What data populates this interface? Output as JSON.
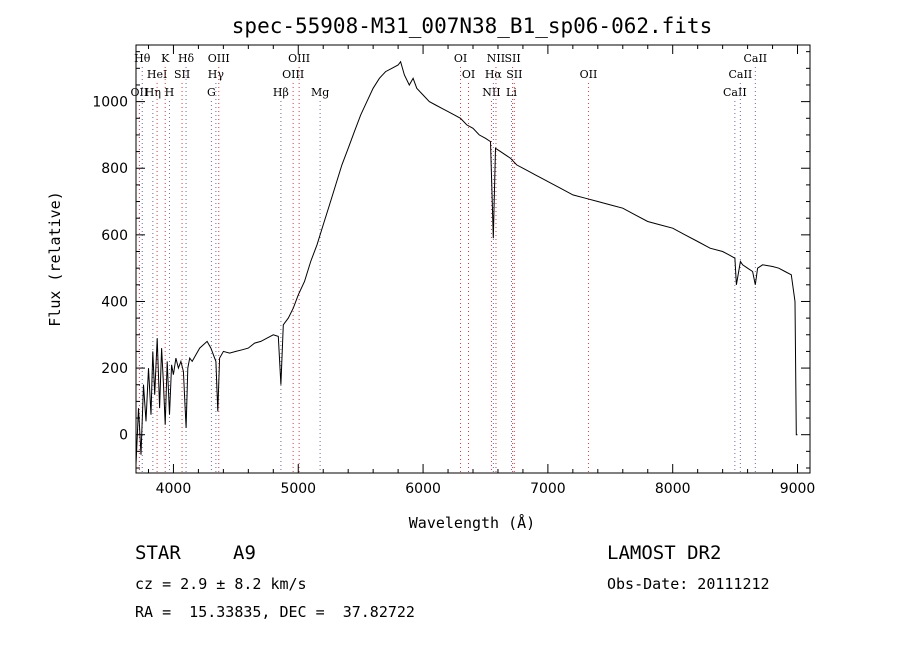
{
  "chart_data": {
    "type": "line",
    "title": "spec-55908-M31_007N38_B1_sp06-062.fits",
    "xlabel": "Wavelength (Å)",
    "ylabel": "Flux (relative)",
    "xlim": [
      3700,
      9100
    ],
    "ylim": [
      -115,
      1170
    ],
    "xticks": [
      4000,
      5000,
      6000,
      7000,
      8000,
      9000
    ],
    "yticks": [
      0,
      200,
      400,
      600,
      800,
      1000
    ],
    "grid": false,
    "series": [
      {
        "x": [
          3700,
          3720,
          3740,
          3760,
          3780,
          3800,
          3820,
          3835,
          3850,
          3870,
          3889,
          3905,
          3920,
          3934,
          3950,
          3968,
          3985,
          4000,
          4020,
          4040,
          4060,
          4080,
          4101,
          4115,
          4130,
          4150,
          4180,
          4210,
          4240,
          4270,
          4300,
          4320,
          4340,
          4355,
          4370,
          4400,
          4450,
          4500,
          4550,
          4600,
          4650,
          4700,
          4750,
          4800,
          4840,
          4861,
          4880,
          4920,
          4960,
          5000,
          5050,
          5100,
          5150,
          5200,
          5250,
          5300,
          5350,
          5400,
          5450,
          5500,
          5550,
          5600,
          5650,
          5700,
          5750,
          5800,
          5820,
          5850,
          5890,
          5920,
          5950,
          6000,
          6050,
          6100,
          6150,
          6200,
          6250,
          6300,
          6350,
          6400,
          6450,
          6500,
          6540,
          6563,
          6580,
          6620,
          6660,
          6700,
          6750,
          6800,
          6850,
          6900,
          6950,
          7000,
          7100,
          7200,
          7300,
          7400,
          7500,
          7600,
          7700,
          7800,
          7900,
          8000,
          8100,
          8200,
          8300,
          8400,
          8450,
          8498,
          8510,
          8542,
          8560,
          8600,
          8640,
          8662,
          8680,
          8720,
          8800,
          8850,
          8900,
          8950,
          8980,
          8990,
          9000
        ],
        "values": [
          -90,
          80,
          -60,
          150,
          40,
          200,
          60,
          250,
          120,
          290,
          80,
          260,
          150,
          30,
          220,
          60,
          210,
          180,
          230,
          200,
          220,
          190,
          20,
          200,
          230,
          220,
          240,
          260,
          270,
          280,
          260,
          240,
          220,
          70,
          230,
          250,
          245,
          250,
          255,
          260,
          275,
          280,
          290,
          300,
          295,
          150,
          330,
          350,
          380,
          420,
          460,
          520,
          570,
          630,
          690,
          750,
          810,
          860,
          910,
          960,
          1000,
          1040,
          1070,
          1090,
          1100,
          1110,
          1120,
          1080,
          1050,
          1070,
          1040,
          1020,
          1000,
          990,
          980,
          970,
          960,
          950,
          930,
          920,
          900,
          890,
          880,
          590,
          860,
          850,
          840,
          830,
          810,
          800,
          790,
          780,
          770,
          760,
          740,
          720,
          710,
          700,
          690,
          680,
          660,
          640,
          630,
          620,
          600,
          580,
          560,
          550,
          540,
          530,
          450,
          520,
          510,
          500,
          490,
          450,
          500,
          510,
          505,
          500,
          490,
          480,
          400,
          0,
          0
        ]
      }
    ],
    "lines_red": [
      {
        "x": 3727,
        "labels": [
          "OII"
        ],
        "rows": [
          2
        ]
      },
      {
        "x": 3869,
        "labels": [
          "HeI"
        ],
        "rows": [
          1
        ]
      },
      {
        "x": 3934,
        "labels": [
          "K"
        ],
        "rows": [
          0
        ]
      },
      {
        "x": 4069,
        "labels": [
          "SII"
        ],
        "rows": [
          1
        ]
      },
      {
        "x": 4363,
        "labels": [
          "OIII"
        ],
        "rows": [
          0
        ]
      },
      {
        "x": 4959,
        "labels": [
          "OIII"
        ],
        "rows": [
          1
        ]
      },
      {
        "x": 5007,
        "labels": [
          "OIII"
        ],
        "rows": [
          0
        ]
      },
      {
        "x": 6300,
        "labels": [
          "OI"
        ],
        "rows": [
          0
        ]
      },
      {
        "x": 6364,
        "labels": [
          "OI"
        ],
        "rows": [
          1
        ]
      },
      {
        "x": 6548,
        "labels": [
          "NII"
        ],
        "rows": [
          2
        ]
      },
      {
        "x": 6584,
        "labels": [
          "NII"
        ],
        "rows": [
          0
        ]
      },
      {
        "x": 6717,
        "labels": [
          "SII"
        ],
        "rows": [
          0
        ]
      },
      {
        "x": 6731,
        "labels": [
          "SII"
        ],
        "rows": [
          1
        ]
      },
      {
        "x": 7325,
        "labels": [
          "OII"
        ],
        "rows": [
          1
        ]
      }
    ],
    "lines_blue": [
      {
        "x": 3750,
        "labels": [
          "Hθ"
        ],
        "rows": [
          0
        ]
      },
      {
        "x": 3835,
        "labels": [
          "Hη"
        ],
        "rows": [
          2
        ]
      },
      {
        "x": 3968,
        "labels": [
          "H"
        ],
        "rows": [
          2
        ]
      },
      {
        "x": 4101,
        "labels": [
          "Hδ"
        ],
        "rows": [
          0
        ]
      },
      {
        "x": 4304,
        "labels": [
          "G"
        ],
        "rows": [
          2
        ]
      },
      {
        "x": 4340,
        "labels": [
          "Hγ"
        ],
        "rows": [
          1
        ]
      },
      {
        "x": 4861,
        "labels": [
          "Hβ"
        ],
        "rows": [
          2
        ]
      },
      {
        "x": 5175,
        "labels": [
          "Mg"
        ],
        "rows": [
          2
        ]
      },
      {
        "x": 6563,
        "labels": [
          "Hα"
        ],
        "rows": [
          1
        ]
      },
      {
        "x": 6708,
        "labels": [
          "Li"
        ],
        "rows": [
          2
        ]
      },
      {
        "x": 8498,
        "labels": [
          "CaII"
        ],
        "rows": [
          2
        ]
      },
      {
        "x": 8542,
        "labels": [
          "CaII"
        ],
        "rows": [
          1
        ]
      },
      {
        "x": 8662,
        "labels": [
          "CaII"
        ],
        "rows": [
          0
        ]
      }
    ]
  },
  "info": {
    "class": "STAR",
    "subclass": "A9",
    "survey": "LAMOST DR2",
    "cz": "cz = 2.9 ± 8.2 km/s",
    "obsdate": "Obs-Date: 20111212",
    "radec": "RA =  15.33835, DEC =  37.82722"
  }
}
